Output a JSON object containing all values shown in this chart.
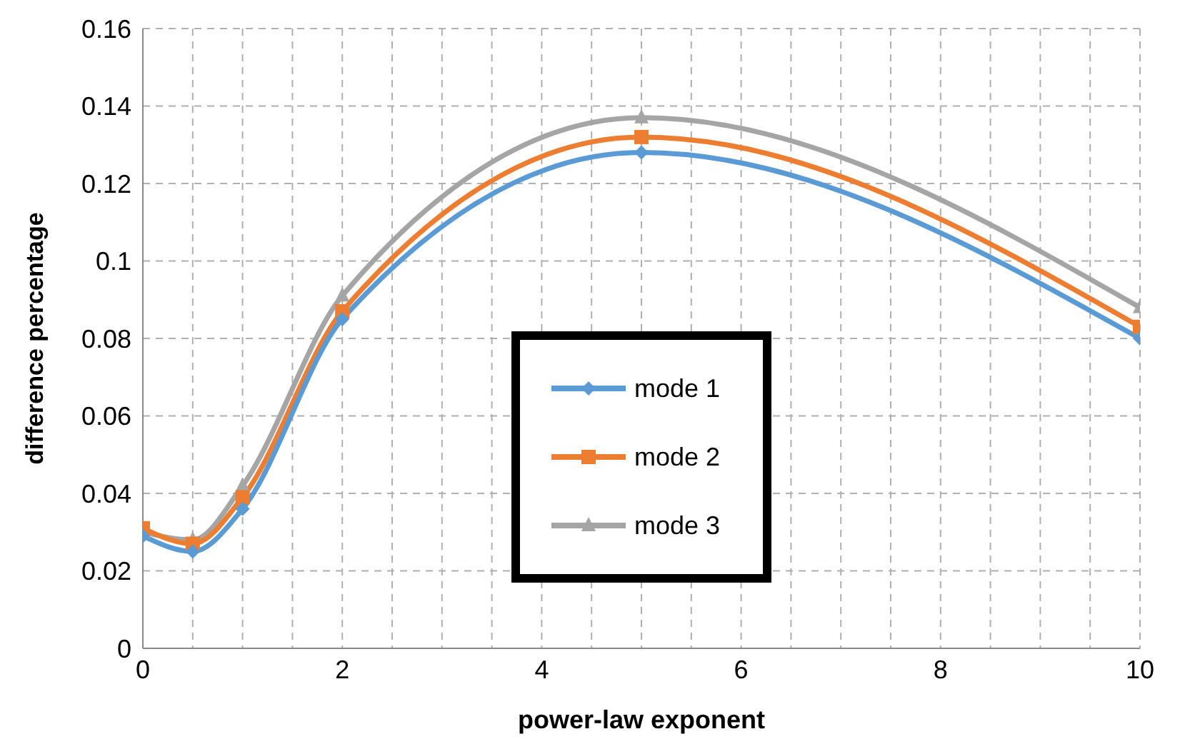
{
  "chart_data": {
    "type": "line",
    "xlabel": "power-law exponent",
    "ylabel": "difference percentage",
    "x": [
      0,
      0.5,
      1,
      2,
      5,
      10
    ],
    "series": [
      {
        "name": "mode 1",
        "color": "#5b9bd5",
        "marker": "diamond",
        "values": [
          0.029,
          0.025,
          0.036,
          0.085,
          0.128,
          0.08
        ]
      },
      {
        "name": "mode 2",
        "color": "#ed7d31",
        "marker": "square",
        "values": [
          0.031,
          0.027,
          0.039,
          0.087,
          0.132,
          0.083
        ]
      },
      {
        "name": "mode 3",
        "color": "#a5a5a5",
        "marker": "triangle",
        "values": [
          0.03,
          0.028,
          0.042,
          0.091,
          0.137,
          0.088
        ]
      }
    ],
    "xlim": [
      0,
      10
    ],
    "xticks": [
      0,
      {
        "value": 0.5,
        "label": null
      },
      {
        "value": 1,
        "label": null
      },
      {
        "value": 1.5,
        "label": null
      },
      2,
      {
        "value": 2.5,
        "label": null
      },
      {
        "value": 3,
        "label": null
      },
      {
        "value": 3.5,
        "label": null
      },
      4,
      {
        "value": 4.5,
        "label": null
      },
      {
        "value": 5,
        "label": null
      },
      {
        "value": 5.5,
        "label": null
      },
      6,
      {
        "value": 6.5,
        "label": null
      },
      {
        "value": 7,
        "label": null
      },
      {
        "value": 7.5,
        "label": null
      },
      8,
      {
        "value": 8.5,
        "label": null
      },
      {
        "value": 9,
        "label": null
      },
      {
        "value": 9.5,
        "label": null
      },
      10
    ],
    "ylim": [
      0,
      0.16
    ],
    "yticks": [
      0,
      0.02,
      0.04,
      0.06,
      0.08,
      0.1,
      0.12,
      0.14,
      0.16
    ],
    "grid": true,
    "legend": "center",
    "line_style": "solid"
  }
}
